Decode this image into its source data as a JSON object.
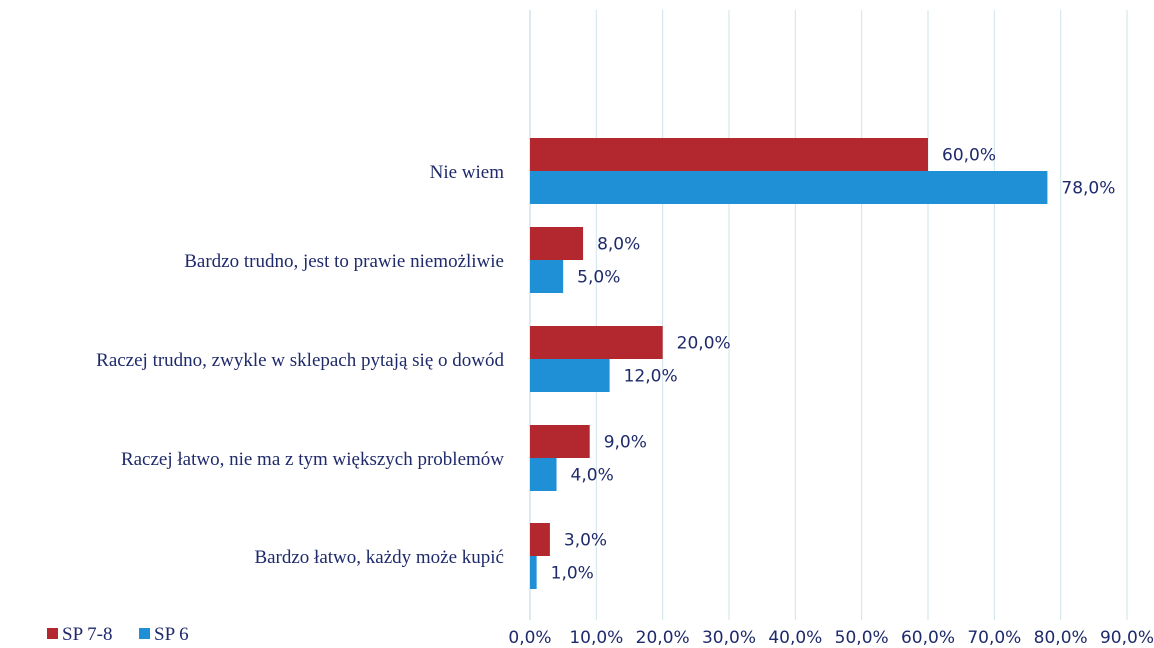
{
  "chart_data": {
    "type": "bar",
    "orientation": "horizontal",
    "categories": [
      "Nie wiem",
      "Bardzo trudno, jest to prawie niemożliwie",
      "Raczej trudno, zwykle w sklepach pytają się o dowód",
      "Raczej łatwo, nie ma z tym większych problemów",
      "Bardzo łatwo, każdy może kupić"
    ],
    "series": [
      {
        "name": "SP 7-8",
        "color": "#b2282e",
        "values": [
          60.0,
          8.0,
          20.0,
          9.0,
          3.0
        ],
        "labels": [
          "60,0%",
          "8,0%",
          "20,0%",
          "9,0%",
          "3,0%"
        ]
      },
      {
        "name": "SP 6",
        "color": "#1f8fd6",
        "values": [
          78.0,
          5.0,
          12.0,
          4.0,
          1.0
        ],
        "labels": [
          "78,0%",
          "5,0%",
          "12,0%",
          "4,0%",
          "1,0%"
        ]
      }
    ],
    "xlim": [
      0,
      90
    ],
    "xticks": [
      0,
      10,
      20,
      30,
      40,
      50,
      60,
      70,
      80,
      90
    ],
    "xtick_labels": [
      "0,0%",
      "10,0%",
      "20,0%",
      "30,0%",
      "40,0%",
      "50,0%",
      "60,0%",
      "70,0%",
      "80,0%",
      "90,0%"
    ],
    "grid": true,
    "legend_position": "bottom-left",
    "title": "",
    "xlabel": "",
    "ylabel": ""
  }
}
